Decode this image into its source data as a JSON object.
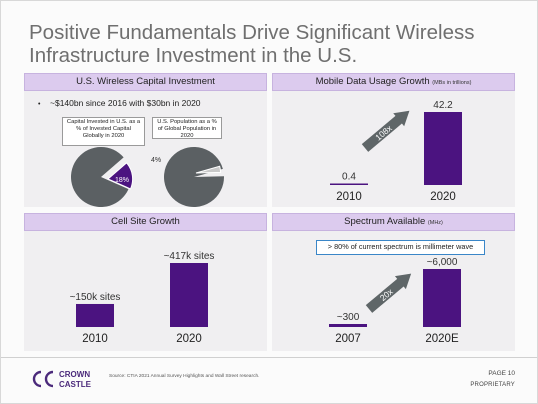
{
  "slide": {
    "title_line1": "Positive Fundamentals Drive Significant Wireless",
    "title_line2": "Infrastructure Investment in the U.S."
  },
  "panels": {
    "capital": {
      "title": "U.S. Wireless Capital Investment",
      "bullet": "~$140bn since 2016 with $30bn in 2020",
      "pie1_label": "Capital Invested in U.S. as a % of Invested Capital Globally in 2020",
      "pie1_value": "18%",
      "pie2_label": "U.S. Population as a % of Global Population in 2020",
      "pie2_value": "4%"
    },
    "mobile": {
      "title": "Mobile Data Usage Growth",
      "title_unit": "(MBs in trillions)",
      "arrow_label": "108x"
    },
    "cell": {
      "title": "Cell Site Growth"
    },
    "spectrum": {
      "title": "Spectrum Available",
      "title_unit": "(MHz)",
      "callout": "> 80% of current spectrum is millimeter wave",
      "arrow_label": "20x"
    }
  },
  "footer": {
    "logo_line1": "CROWN",
    "logo_line2": "CASTLE",
    "source": "Source: CTIA 2021 Annual Survey Highlights and Wall Street research.",
    "page": "PAGE 10",
    "proprietary": "PROPRIETARY"
  },
  "colors": {
    "bar": "#4b1380",
    "header": "#dccbee",
    "pie_grey": "#5b6063",
    "arrow_grey": "#5f6668",
    "callout_border": "#3a86c8"
  },
  "chart_data": [
    {
      "type": "pie",
      "slices": [
        {
          "label": "18%",
          "value": 18
        },
        {
          "label": "",
          "value": 82
        }
      ],
      "title": "Capital Invested in U.S. as a % of Invested Capital Globally in 2020"
    },
    {
      "type": "pie",
      "slices": [
        {
          "label": "4%",
          "value": 4
        },
        {
          "label": "",
          "value": 96
        }
      ],
      "title": "U.S. Population as a % of Global Population in 2020"
    },
    {
      "type": "bar",
      "title": "Mobile Data Usage Growth",
      "categories": [
        "2010",
        "2020"
      ],
      "values": [
        0.4,
        42.2
      ],
      "labels": [
        "0.4",
        "42.2"
      ]
    },
    {
      "type": "bar",
      "title": "Cell Site Growth",
      "categories": [
        "2010",
        "2020"
      ],
      "values": [
        150,
        417
      ],
      "labels": [
        "~150k sites",
        "~417k sites"
      ]
    },
    {
      "type": "bar",
      "title": "Spectrum Available",
      "categories": [
        "2007",
        "2020E"
      ],
      "values": [
        300,
        6000
      ],
      "labels": [
        "~300",
        "~6,000"
      ]
    }
  ]
}
